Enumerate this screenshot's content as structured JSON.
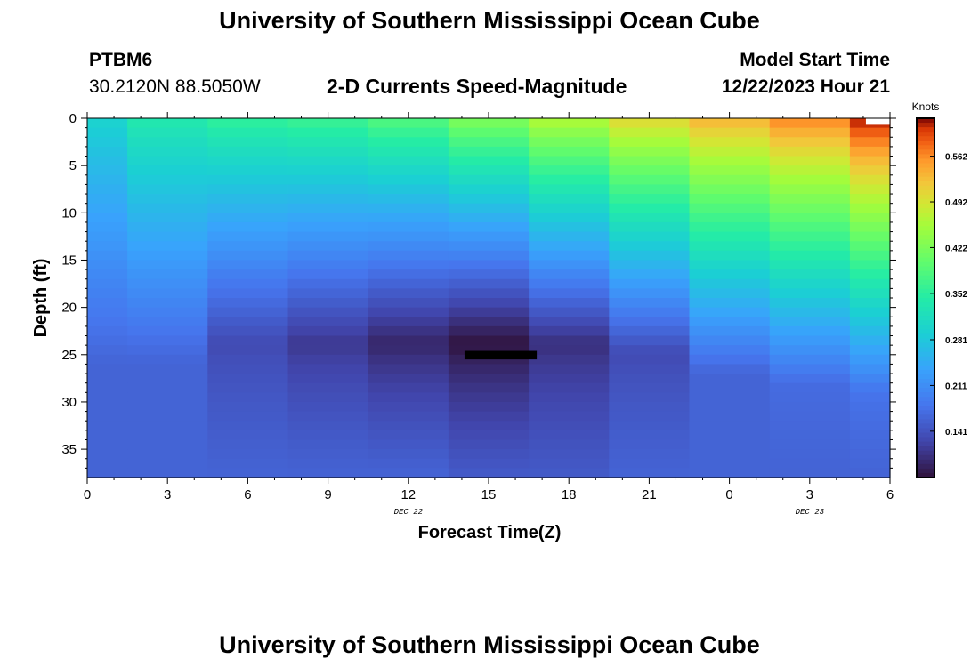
{
  "header": {
    "title": "University of Southern Mississippi Ocean Cube",
    "station": "PTBM6",
    "coords": "30.2120N  88.5050W",
    "subtitle": "2-D Currents Speed-Magnitude",
    "model_start_label": "Model Start Time",
    "model_start_value": "12/22/2023 Hour 21"
  },
  "footer": {
    "title": "University of Southern Mississippi Ocean Cube"
  },
  "chart_data": {
    "type": "heatmap",
    "xlabel": "Forecast Time(Z)",
    "ylabel": "Depth (ft)",
    "x_tick_labels": [
      "0",
      "3",
      "6",
      "9",
      "12",
      "15",
      "18",
      "21",
      "0",
      "3",
      "6"
    ],
    "date_labels": [
      {
        "text": "DEC 22",
        "x": 12
      },
      {
        "text": "DEC 23",
        "x": 3
      }
    ],
    "y_ticks": [
      0,
      5,
      10,
      15,
      20,
      25,
      30,
      35
    ],
    "ylim": [
      0,
      38
    ],
    "colorbar": {
      "title": "Knots",
      "tick_labels": [
        "0.562",
        "0.492",
        "0.422",
        "0.352",
        "0.281",
        "0.211",
        "0.141"
      ],
      "range": [
        0.07,
        0.62
      ]
    },
    "columns": [
      "00Z",
      "03Z",
      "06Z",
      "09Z",
      "12Z",
      "15Z",
      "18Z",
      "21Z",
      "00Z",
      "03Z",
      "06Z"
    ],
    "surface_speed_knots": [
      0.3,
      0.34,
      0.36,
      0.37,
      0.39,
      0.43,
      0.47,
      0.51,
      0.54,
      0.57,
      0.62
    ],
    "bottom_speed_knots": [
      0.16,
      0.16,
      0.16,
      0.16,
      0.16,
      0.15,
      0.15,
      0.16,
      0.16,
      0.16,
      0.16
    ],
    "min_speed_knots": [
      0.16,
      0.16,
      0.13,
      0.11,
      0.09,
      0.07,
      0.1,
      0.13,
      0.16,
      0.17,
      0.18
    ],
    "min_depth_ft": [
      26,
      26,
      24,
      24,
      24,
      24,
      24,
      25,
      27,
      28,
      29
    ],
    "colors": {
      "frame": "#000000",
      "marker": "#000000"
    }
  }
}
